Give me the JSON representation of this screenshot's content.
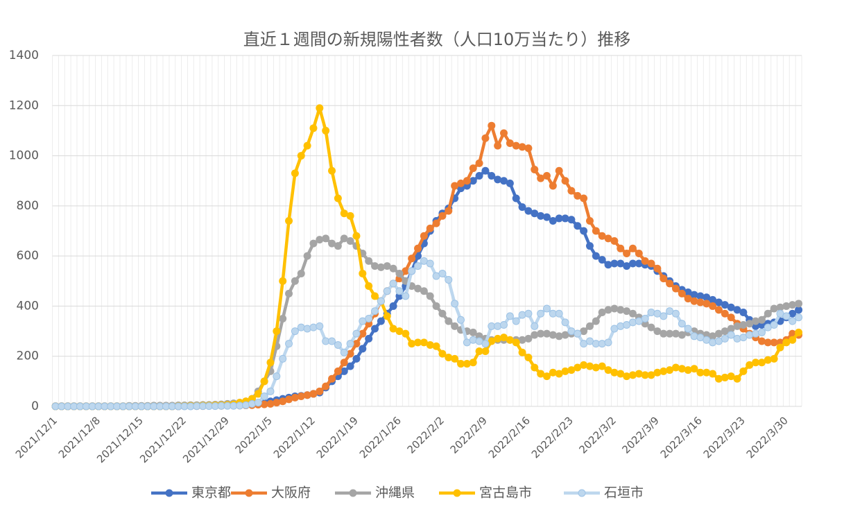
{
  "chart_data": {
    "type": "line",
    "title": "直近１週間の新規陽性者数（人口10万当たり）推移",
    "categories": [
      "2021/12/1",
      null,
      null,
      null,
      null,
      null,
      null,
      "2021/12/8",
      null,
      null,
      null,
      null,
      null,
      null,
      "2021/12/15",
      null,
      null,
      null,
      null,
      null,
      null,
      "2021/12/22",
      null,
      null,
      null,
      null,
      null,
      null,
      "2021/12/29",
      null,
      null,
      null,
      null,
      null,
      null,
      "2022/1/5",
      null,
      null,
      null,
      null,
      null,
      null,
      "2022/1/12",
      null,
      null,
      null,
      null,
      null,
      null,
      "2022/1/19",
      null,
      null,
      null,
      null,
      null,
      null,
      "2022/1/26",
      null,
      null,
      null,
      null,
      null,
      null,
      "2022/2/2",
      null,
      null,
      null,
      null,
      null,
      null,
      "2022/2/9",
      null,
      null,
      null,
      null,
      null,
      null,
      "2022/2/16",
      null,
      null,
      null,
      null,
      null,
      null,
      "2022/2/23",
      null,
      null,
      null,
      null,
      null,
      null,
      "2022/3/2",
      null,
      null,
      null,
      null,
      null,
      null,
      "2022/3/9",
      null,
      null,
      null,
      null,
      null,
      null,
      "2022/3/16",
      null,
      null,
      null,
      null,
      null,
      null,
      "2022/3/23",
      null,
      null,
      null,
      null,
      null,
      null,
      "2022/3/30",
      null,
      null
    ],
    "series": [
      {
        "name": "東京都",
        "color": "#4472c4",
        "values": [
          0,
          0,
          0,
          0,
          0,
          0,
          0,
          0,
          0,
          0,
          0,
          0,
          0,
          0,
          0,
          0,
          0,
          0,
          0,
          0,
          0,
          1,
          1,
          1,
          2,
          2,
          2,
          3,
          3,
          3,
          4,
          5,
          7,
          10,
          15,
          20,
          25,
          30,
          35,
          40,
          42,
          45,
          50,
          55,
          75,
          100,
          120,
          140,
          160,
          190,
          230,
          270,
          310,
          340,
          370,
          400,
          440,
          480,
          540,
          600,
          650,
          700,
          740,
          770,
          790,
          830,
          870,
          880,
          900,
          920,
          940,
          920,
          905,
          900,
          890,
          830,
          795,
          780,
          770,
          760,
          755,
          740,
          750,
          750,
          745,
          720,
          700,
          640,
          600,
          585,
          565,
          570,
          570,
          560,
          570,
          570,
          565,
          560,
          540,
          520,
          500,
          480,
          465,
          455,
          445,
          440,
          435,
          425,
          415,
          405,
          395,
          385,
          375,
          345,
          320,
          325,
          330,
          335,
          340,
          355,
          370,
          385
        ]
      },
      {
        "name": "大阪府",
        "color": "#ed7d31",
        "values": [
          0,
          0,
          0,
          0,
          0,
          0,
          0,
          0,
          0,
          0,
          0,
          0,
          0,
          0,
          0,
          0,
          0,
          0,
          0,
          0,
          0,
          1,
          1,
          1,
          1,
          2,
          2,
          2,
          3,
          3,
          3,
          4,
          5,
          7,
          8,
          10,
          15,
          20,
          28,
          35,
          40,
          45,
          50,
          60,
          80,
          110,
          140,
          175,
          210,
          250,
          290,
          330,
          370,
          420,
          460,
          490,
          510,
          540,
          590,
          630,
          680,
          710,
          730,
          760,
          780,
          880,
          890,
          900,
          950,
          970,
          1070,
          1120,
          1040,
          1090,
          1050,
          1040,
          1035,
          1030,
          945,
          910,
          920,
          880,
          940,
          900,
          860,
          840,
          830,
          740,
          700,
          680,
          670,
          660,
          630,
          610,
          630,
          610,
          580,
          570,
          550,
          510,
          490,
          470,
          450,
          430,
          420,
          415,
          410,
          400,
          385,
          370,
          355,
          330,
          310,
          290,
          275,
          260,
          255,
          255,
          255,
          265,
          290,
          285
        ]
      },
      {
        "name": "沖縄県",
        "color": "#a5a5a5",
        "values": [
          1,
          1,
          1,
          1,
          1,
          1,
          1,
          1,
          1,
          1,
          1,
          1,
          2,
          2,
          2,
          2,
          3,
          3,
          3,
          3,
          4,
          4,
          5,
          5,
          6,
          6,
          7,
          8,
          10,
          12,
          15,
          20,
          30,
          60,
          100,
          140,
          240,
          350,
          450,
          500,
          530,
          600,
          650,
          665,
          670,
          650,
          640,
          670,
          660,
          640,
          610,
          580,
          560,
          555,
          560,
          550,
          530,
          500,
          480,
          470,
          460,
          440,
          400,
          370,
          340,
          320,
          305,
          300,
          295,
          280,
          270,
          265,
          265,
          265,
          265,
          265,
          265,
          270,
          285,
          290,
          290,
          285,
          280,
          285,
          290,
          290,
          300,
          320,
          340,
          375,
          385,
          390,
          385,
          380,
          370,
          355,
          330,
          315,
          300,
          290,
          290,
          290,
          285,
          295,
          300,
          290,
          285,
          280,
          290,
          300,
          310,
          320,
          325,
          330,
          340,
          345,
          370,
          390,
          395,
          400,
          405,
          410
        ]
      },
      {
        "name": "宮古島市",
        "color": "#ffc000",
        "values": [
          0,
          0,
          0,
          0,
          0,
          0,
          0,
          0,
          0,
          0,
          0,
          0,
          0,
          0,
          0,
          0,
          0,
          0,
          0,
          0,
          1,
          1,
          2,
          2,
          3,
          3,
          4,
          5,
          6,
          8,
          15,
          20,
          30,
          50,
          100,
          175,
          300,
          500,
          740,
          930,
          1000,
          1040,
          1110,
          1190,
          1100,
          940,
          830,
          770,
          760,
          680,
          530,
          480,
          440,
          420,
          360,
          310,
          300,
          290,
          250,
          255,
          255,
          245,
          240,
          210,
          195,
          190,
          170,
          170,
          175,
          220,
          220,
          260,
          270,
          275,
          265,
          255,
          215,
          195,
          155,
          130,
          120,
          135,
          130,
          140,
          145,
          155,
          165,
          160,
          155,
          160,
          145,
          135,
          130,
          120,
          125,
          130,
          125,
          125,
          135,
          140,
          145,
          155,
          150,
          145,
          150,
          135,
          135,
          130,
          110,
          115,
          120,
          110,
          140,
          165,
          175,
          175,
          185,
          190,
          235,
          255,
          265,
          295
        ]
      },
      {
        "name": "石垣市",
        "color": "#bdd7ee",
        "values": [
          0,
          0,
          0,
          0,
          0,
          0,
          0,
          0,
          0,
          0,
          0,
          0,
          0,
          0,
          0,
          0,
          0,
          0,
          0,
          0,
          0,
          0,
          0,
          1,
          1,
          1,
          1,
          2,
          2,
          2,
          3,
          5,
          10,
          15,
          40,
          60,
          120,
          190,
          250,
          300,
          315,
          310,
          315,
          320,
          260,
          260,
          245,
          215,
          250,
          290,
          340,
          350,
          380,
          420,
          460,
          490,
          460,
          440,
          540,
          560,
          580,
          570,
          520,
          530,
          505,
          410,
          345,
          255,
          265,
          260,
          250,
          320,
          320,
          325,
          360,
          340,
          365,
          370,
          320,
          370,
          390,
          370,
          370,
          335,
          300,
          290,
          250,
          260,
          250,
          250,
          255,
          310,
          320,
          325,
          335,
          340,
          350,
          375,
          370,
          360,
          380,
          370,
          330,
          310,
          280,
          275,
          265,
          255,
          260,
          270,
          285,
          270,
          275,
          285,
          290,
          295,
          315,
          325,
          370,
          360,
          340,
          355
        ]
      }
    ],
    "ylim": [
      0,
      1400
    ],
    "yticks": [
      0,
      200,
      400,
      600,
      800,
      1000,
      1200,
      1400
    ],
    "grid": true,
    "legend": "bottom"
  }
}
